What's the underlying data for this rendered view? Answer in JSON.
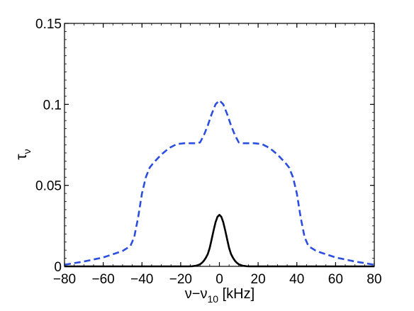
{
  "chart_data": {
    "type": "line",
    "xlim": [
      -80,
      80
    ],
    "ylim": [
      0,
      0.15
    ],
    "xticks": [
      -80,
      -60,
      -40,
      -20,
      0,
      20,
      40,
      60,
      80
    ],
    "xtick_labels": [
      "−80",
      "−60",
      "−40",
      "−20",
      "0",
      "20",
      "40",
      "60",
      "80"
    ],
    "yticks": [
      0,
      0.05,
      0.1,
      0.15
    ],
    "ytick_labels": [
      "0",
      "0.05",
      "0.1",
      "0.15"
    ],
    "xlabel": {
      "main": "ν−ν",
      "sub": "10",
      "unit": " [kHz]"
    },
    "ylabel": {
      "main": "τ",
      "sub": "ν"
    },
    "grid": false,
    "legend": "none",
    "series": [
      {
        "style": "dashed",
        "color": "#2b4ee0",
        "x": [
          -80,
          -70,
          -60,
          -50,
          -46,
          -44,
          -42,
          -40,
          -38,
          -36,
          -34,
          -30,
          -26,
          -22,
          -18,
          -14,
          -12,
          -10,
          -8,
          -6,
          -4,
          -2,
          0,
          2,
          4,
          6,
          8,
          10,
          12,
          14,
          18,
          22,
          26,
          30,
          34,
          36,
          38,
          40,
          42,
          44,
          46,
          50,
          60,
          70,
          80
        ],
        "y": [
          0.001,
          0.003,
          0.0055,
          0.0095,
          0.0125,
          0.018,
          0.03,
          0.045,
          0.055,
          0.061,
          0.064,
          0.069,
          0.073,
          0.0755,
          0.076,
          0.076,
          0.076,
          0.0765,
          0.081,
          0.087,
          0.094,
          0.1,
          0.1025,
          0.1,
          0.094,
          0.087,
          0.081,
          0.0765,
          0.076,
          0.076,
          0.076,
          0.0755,
          0.073,
          0.069,
          0.064,
          0.061,
          0.055,
          0.045,
          0.03,
          0.018,
          0.0125,
          0.0095,
          0.0055,
          0.003,
          0.001
        ]
      },
      {
        "style": "solid",
        "color": "#000000",
        "x": [
          -80,
          -20,
          -16,
          -14,
          -12,
          -10,
          -9,
          -8,
          -7,
          -6,
          -5,
          -4,
          -3,
          -2,
          -1,
          0,
          1,
          2,
          3,
          4,
          5,
          6,
          7,
          8,
          9,
          10,
          12,
          14,
          16,
          20,
          80
        ],
        "y": [
          0,
          0,
          0,
          0.0001,
          0.0004,
          0.0013,
          0.0022,
          0.0035,
          0.0053,
          0.0076,
          0.0114,
          0.0167,
          0.0222,
          0.0272,
          0.0306,
          0.0318,
          0.0306,
          0.0272,
          0.0222,
          0.0167,
          0.0114,
          0.0076,
          0.0053,
          0.0035,
          0.0022,
          0.0013,
          0.0004,
          0.0001,
          0,
          0,
          0
        ]
      }
    ]
  }
}
